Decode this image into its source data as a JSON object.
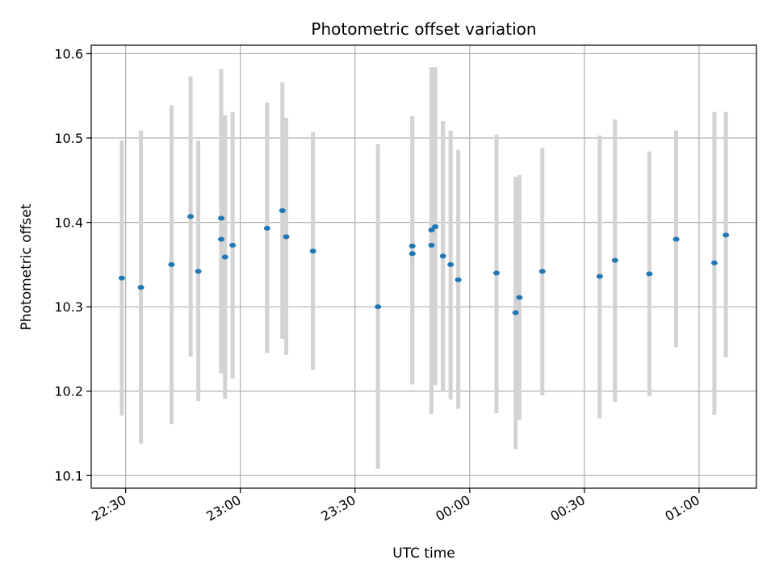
{
  "chart_data": {
    "type": "scatter",
    "title": "Photometric offset variation",
    "xlabel": "UTC time",
    "ylabel": "Photometric offset",
    "xlim": [
      "22:21",
      "01:15"
    ],
    "ylim": [
      10.085,
      10.61
    ],
    "grid": true,
    "x_ticks": [
      {
        "time": "22:30",
        "label": "22:30"
      },
      {
        "time": "23:00",
        "label": "23:00"
      },
      {
        "time": "23:30",
        "label": "23:30"
      },
      {
        "time": "00:00",
        "label": "00:00"
      },
      {
        "time": "00:30",
        "label": "00:30"
      },
      {
        "time": "01:00",
        "label": "01:00"
      }
    ],
    "y_ticks": [
      {
        "value": 10.1,
        "label": "10.1"
      },
      {
        "value": 10.2,
        "label": "10.2"
      },
      {
        "value": 10.3,
        "label": "10.3"
      },
      {
        "value": 10.4,
        "label": "10.4"
      },
      {
        "value": 10.5,
        "label": "10.5"
      },
      {
        "value": 10.6,
        "label": "10.6"
      }
    ],
    "colors": {
      "point": "#1f77b4",
      "errorbar": "#d3d3d3",
      "grid": "#b0b0b0"
    },
    "points": [
      {
        "time": "22:29",
        "y": 10.334,
        "ylow": 10.171,
        "yhigh": 10.497
      },
      {
        "time": "22:34",
        "y": 10.323,
        "ylow": 10.138,
        "yhigh": 10.509
      },
      {
        "time": "22:42",
        "y": 10.35,
        "ylow": 10.161,
        "yhigh": 10.539
      },
      {
        "time": "22:47",
        "y": 10.407,
        "ylow": 10.241,
        "yhigh": 10.573
      },
      {
        "time": "22:49",
        "y": 10.342,
        "ylow": 10.188,
        "yhigh": 10.497
      },
      {
        "time": "22:55",
        "y": 10.38,
        "ylow": 10.221,
        "yhigh": 10.54
      },
      {
        "time": "22:55",
        "y": 10.405,
        "ylow": 10.228,
        "yhigh": 10.582
      },
      {
        "time": "22:56",
        "y": 10.359,
        "ylow": 10.191,
        "yhigh": 10.527
      },
      {
        "time": "22:58",
        "y": 10.373,
        "ylow": 10.215,
        "yhigh": 10.531
      },
      {
        "time": "23:07",
        "y": 10.393,
        "ylow": 10.245,
        "yhigh": 10.542
      },
      {
        "time": "23:11",
        "y": 10.414,
        "ylow": 10.262,
        "yhigh": 10.566
      },
      {
        "time": "23:12",
        "y": 10.383,
        "ylow": 10.243,
        "yhigh": 10.524
      },
      {
        "time": "23:19",
        "y": 10.366,
        "ylow": 10.225,
        "yhigh": 10.507
      },
      {
        "time": "23:36",
        "y": 10.3,
        "ylow": 10.108,
        "yhigh": 10.493
      },
      {
        "time": "23:45",
        "y": 10.372,
        "ylow": 10.208,
        "yhigh": 10.526
      },
      {
        "time": "23:45",
        "y": 10.363,
        "ylow": 10.208,
        "yhigh": 10.526
      },
      {
        "time": "23:50",
        "y": 10.373,
        "ylow": 10.173,
        "yhigh": 10.575
      },
      {
        "time": "23:50",
        "y": 10.391,
        "ylow": 10.207,
        "yhigh": 10.584
      },
      {
        "time": "23:51",
        "y": 10.395,
        "ylow": 10.207,
        "yhigh": 10.584
      },
      {
        "time": "23:53",
        "y": 10.36,
        "ylow": 10.201,
        "yhigh": 10.52
      },
      {
        "time": "23:55",
        "y": 10.35,
        "ylow": 10.19,
        "yhigh": 10.509
      },
      {
        "time": "23:57",
        "y": 10.332,
        "ylow": 10.179,
        "yhigh": 10.486
      },
      {
        "time": "00:07",
        "y": 10.34,
        "ylow": 10.174,
        "yhigh": 10.504
      },
      {
        "time": "00:12",
        "y": 10.293,
        "ylow": 10.131,
        "yhigh": 10.454
      },
      {
        "time": "00:13",
        "y": 10.311,
        "ylow": 10.166,
        "yhigh": 10.456
      },
      {
        "time": "00:19",
        "y": 10.342,
        "ylow": 10.195,
        "yhigh": 10.488
      },
      {
        "time": "00:34",
        "y": 10.336,
        "ylow": 10.168,
        "yhigh": 10.503
      },
      {
        "time": "00:38",
        "y": 10.355,
        "ylow": 10.187,
        "yhigh": 10.522
      },
      {
        "time": "00:47",
        "y": 10.339,
        "ylow": 10.194,
        "yhigh": 10.484
      },
      {
        "time": "00:54",
        "y": 10.38,
        "ylow": 10.252,
        "yhigh": 10.509
      },
      {
        "time": "01:04",
        "y": 10.352,
        "ylow": 10.172,
        "yhigh": 10.531
      },
      {
        "time": "01:07",
        "y": 10.385,
        "ylow": 10.24,
        "yhigh": 10.531
      }
    ]
  }
}
